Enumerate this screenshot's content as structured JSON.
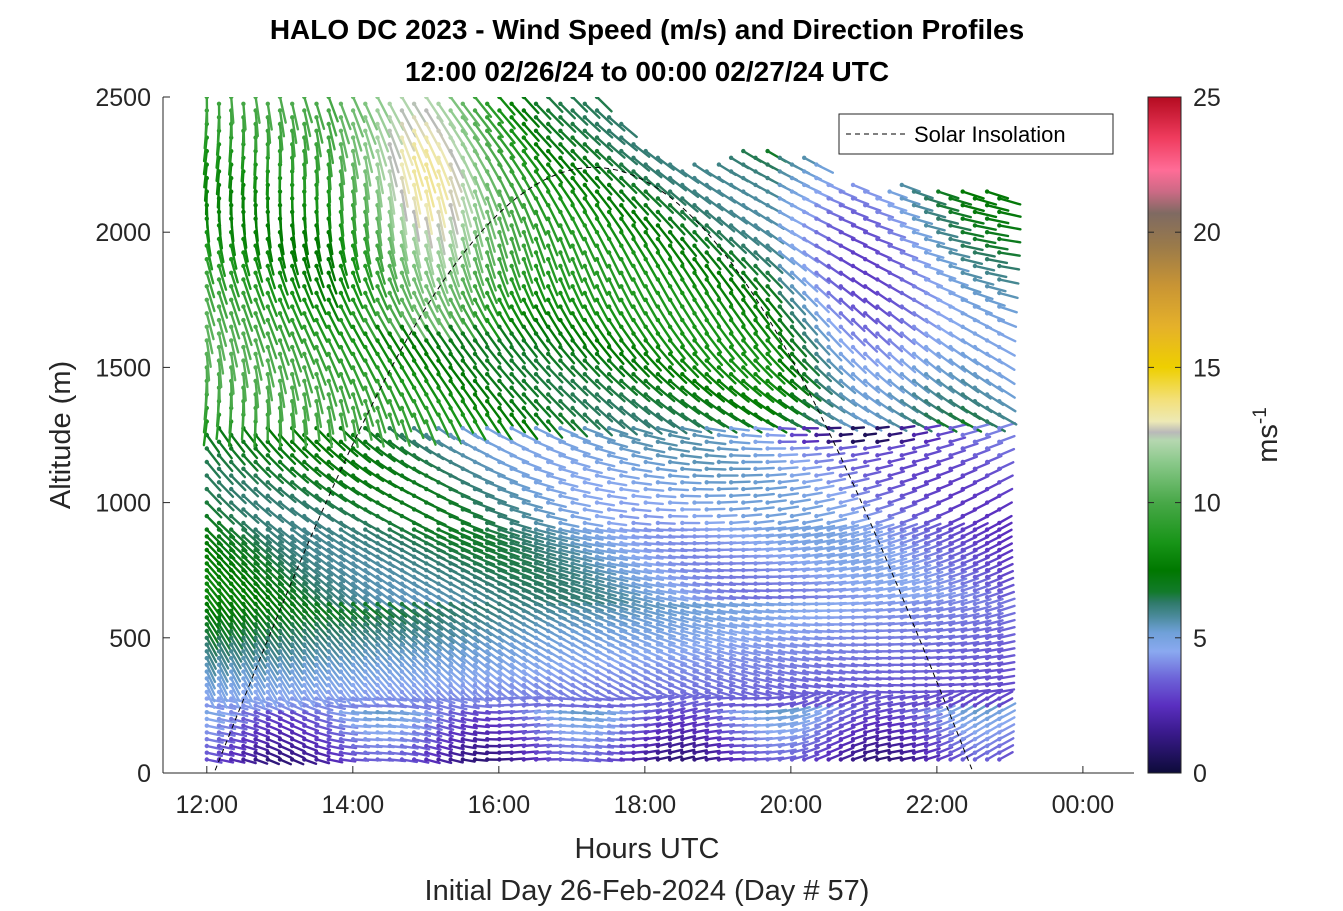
{
  "chart_data": {
    "type": "wind_barb_profile",
    "title": "HALO DC 2023 - Wind Speed (m/s) and Direction Profiles",
    "subtitle": "12:00 02/26/24 to 00:00 02/27/24  UTC",
    "xlabel": "Hours UTC",
    "xlabel2": "Initial Day 26-Feb-2024 (Day # 57)",
    "ylabel": "Altitude (m)",
    "xlim": [
      11.4,
      24.7
    ],
    "ylim": [
      0,
      2500
    ],
    "x_ticks": [
      12,
      14,
      16,
      18,
      20,
      22,
      24
    ],
    "x_tick_labels": [
      "12:00",
      "14:00",
      "16:00",
      "18:00",
      "20:00",
      "22:00",
      "00:00"
    ],
    "y_ticks": [
      0,
      500,
      1000,
      1500,
      2000,
      2500
    ],
    "y_tick_labels": [
      "0",
      "500",
      "1000",
      "1500",
      "2000",
      "2500"
    ],
    "legend": {
      "label": "Solar Insolation",
      "placement": "top-right"
    },
    "colorbar": {
      "label_base": "ms",
      "label_exp": "-1",
      "range": [
        0,
        25
      ],
      "ticks": [
        0,
        5,
        10,
        15,
        20,
        25
      ],
      "tick_labels": [
        "0",
        "5",
        "10",
        "15",
        "20",
        "25"
      ],
      "stops": [
        [
          0,
          "#0d0b3a"
        ],
        [
          1.5,
          "#3a1a8c"
        ],
        [
          2.5,
          "#5a2fc0"
        ],
        [
          3.5,
          "#6d63d8"
        ],
        [
          4.5,
          "#8aa9f0"
        ],
        [
          5.2,
          "#6fa0d8"
        ],
        [
          5.8,
          "#4a8a9a"
        ],
        [
          6.3,
          "#2f7a6a"
        ],
        [
          6.7,
          "#127a2a"
        ],
        [
          7.5,
          "#007800"
        ],
        [
          8.5,
          "#179417"
        ],
        [
          10,
          "#48a848"
        ],
        [
          11.5,
          "#8bc98b"
        ],
        [
          12.3,
          "#b5d7b0"
        ],
        [
          12.6,
          "#b9b9b9"
        ],
        [
          13,
          "#ede9b5"
        ],
        [
          13.8,
          "#f3e07a"
        ],
        [
          15,
          "#eecf00"
        ],
        [
          16.5,
          "#e5b12a"
        ],
        [
          18,
          "#c99534"
        ],
        [
          19.5,
          "#9a7a4a"
        ],
        [
          20.7,
          "#7f6a62"
        ],
        [
          21.5,
          "#cc6a85"
        ],
        [
          22.3,
          "#ff6c97"
        ],
        [
          23.5,
          "#ef3b5d"
        ],
        [
          25,
          "#b40b20"
        ]
      ]
    },
    "wind_profile": {
      "time_start": 12.0,
      "time_end": 22.95,
      "time_step": 0.167,
      "altitude_top": 2500,
      "altitude_step": 25
    },
    "solar_insolation": {
      "sunrise": 12.1,
      "sunset": 22.5,
      "peak_altitude_units": 2240
    }
  }
}
